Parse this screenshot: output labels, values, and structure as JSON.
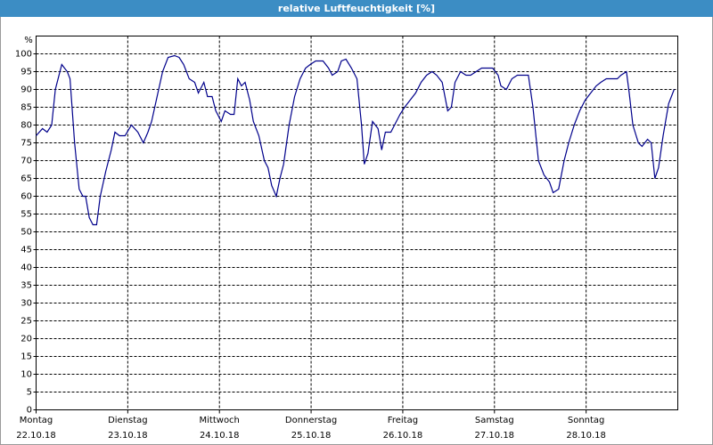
{
  "chart_data": {
    "type": "line",
    "title": "relative Luftfeuchtigkeit [%]",
    "y_label": "%",
    "xlim": [
      0,
      7
    ],
    "xticks": [
      {
        "value": 0,
        "label": [
          "Montag",
          "22.10.18"
        ]
      },
      {
        "value": 1,
        "label": [
          "Dienstag",
          "23.10.18"
        ]
      },
      {
        "value": 2,
        "label": [
          "Mittwoch",
          "24.10.18"
        ]
      },
      {
        "value": 3,
        "label": [
          "Donnerstag",
          "25.10.18"
        ]
      },
      {
        "value": 4,
        "label": [
          "Freitag",
          "26.10.18"
        ]
      },
      {
        "value": 5,
        "label": [
          "Samstag",
          "27.10.18"
        ]
      },
      {
        "value": 6,
        "label": [
          "Sonntag",
          "28.10.18"
        ]
      }
    ],
    "ylim": [
      0,
      105
    ],
    "yticks": [
      0,
      5,
      10,
      15,
      20,
      25,
      30,
      35,
      40,
      45,
      50,
      55,
      60,
      65,
      70,
      75,
      80,
      85,
      90,
      95,
      100
    ],
    "grid": true,
    "color": "#00008b",
    "x": [
      0,
      0.07,
      0.12,
      0.17,
      0.21,
      0.28,
      0.34,
      0.37,
      0.42,
      0.47,
      0.51,
      0.54,
      0.58,
      0.62,
      0.66,
      0.7,
      0.76,
      0.82,
      0.86,
      0.91,
      0.97,
      1.04,
      1.11,
      1.17,
      1.22,
      1.26,
      1.32,
      1.38,
      1.44,
      1.51,
      1.56,
      1.61,
      1.67,
      1.73,
      1.77,
      1.83,
      1.87,
      1.92,
      1.96,
      2.02,
      2.06,
      2.12,
      2.16,
      2.2,
      2.24,
      2.28,
      2.33,
      2.37,
      2.43,
      2.49,
      2.53,
      2.57,
      2.62,
      2.66,
      2.7,
      2.76,
      2.82,
      2.88,
      2.94,
      2.99,
      3.05,
      3.13,
      3.19,
      3.23,
      3.29,
      3.33,
      3.38,
      3.44,
      3.5,
      3.55,
      3.58,
      3.62,
      3.67,
      3.73,
      3.77,
      3.81,
      3.87,
      3.91,
      3.97,
      4.02,
      4.08,
      4.14,
      4.2,
      4.26,
      4.32,
      4.37,
      4.43,
      4.49,
      4.53,
      4.57,
      4.63,
      4.69,
      4.74,
      4.8,
      4.86,
      4.92,
      4.98,
      5.04,
      5.07,
      5.13,
      5.19,
      5.25,
      5.31,
      5.37,
      5.42,
      5.48,
      5.54,
      5.6,
      5.64,
      5.7,
      5.76,
      5.81,
      5.87,
      5.93,
      5.99,
      6.05,
      6.11,
      6.16,
      6.22,
      6.28,
      6.34,
      6.38,
      6.44,
      6.47,
      6.51,
      6.57,
      6.61,
      6.67,
      6.71,
      6.75,
      6.79,
      6.84,
      6.9,
      6.96
    ],
    "values": [
      77,
      79,
      78,
      80,
      90,
      97,
      95,
      93,
      75,
      62,
      60,
      60,
      54,
      52,
      52,
      60,
      67,
      73,
      78,
      77,
      77,
      80,
      78,
      75,
      78,
      81,
      88,
      95,
      99,
      99.5,
      99,
      97,
      93,
      92,
      89,
      92,
      88,
      88,
      84,
      81,
      84,
      83,
      83,
      93,
      91,
      92,
      87,
      81,
      77,
      70,
      68,
      63,
      60,
      65,
      69,
      80,
      88,
      93,
      96,
      97,
      98,
      98,
      96,
      94,
      95,
      98,
      98.5,
      96,
      93,
      80,
      69,
      72,
      81,
      79,
      73,
      78,
      78,
      80,
      83,
      85,
      87,
      89,
      92,
      94,
      95,
      94,
      92,
      84,
      85,
      92,
      95,
      94,
      94,
      95,
      96,
      96,
      96,
      94,
      91,
      90,
      93,
      94,
      94,
      94,
      85,
      70,
      66,
      64,
      61,
      62,
      70,
      75,
      80,
      84,
      87,
      89,
      91,
      92,
      93,
      93,
      93,
      94,
      95,
      89,
      80,
      75,
      74,
      76,
      75,
      65,
      68,
      77,
      86,
      90
    ]
  }
}
